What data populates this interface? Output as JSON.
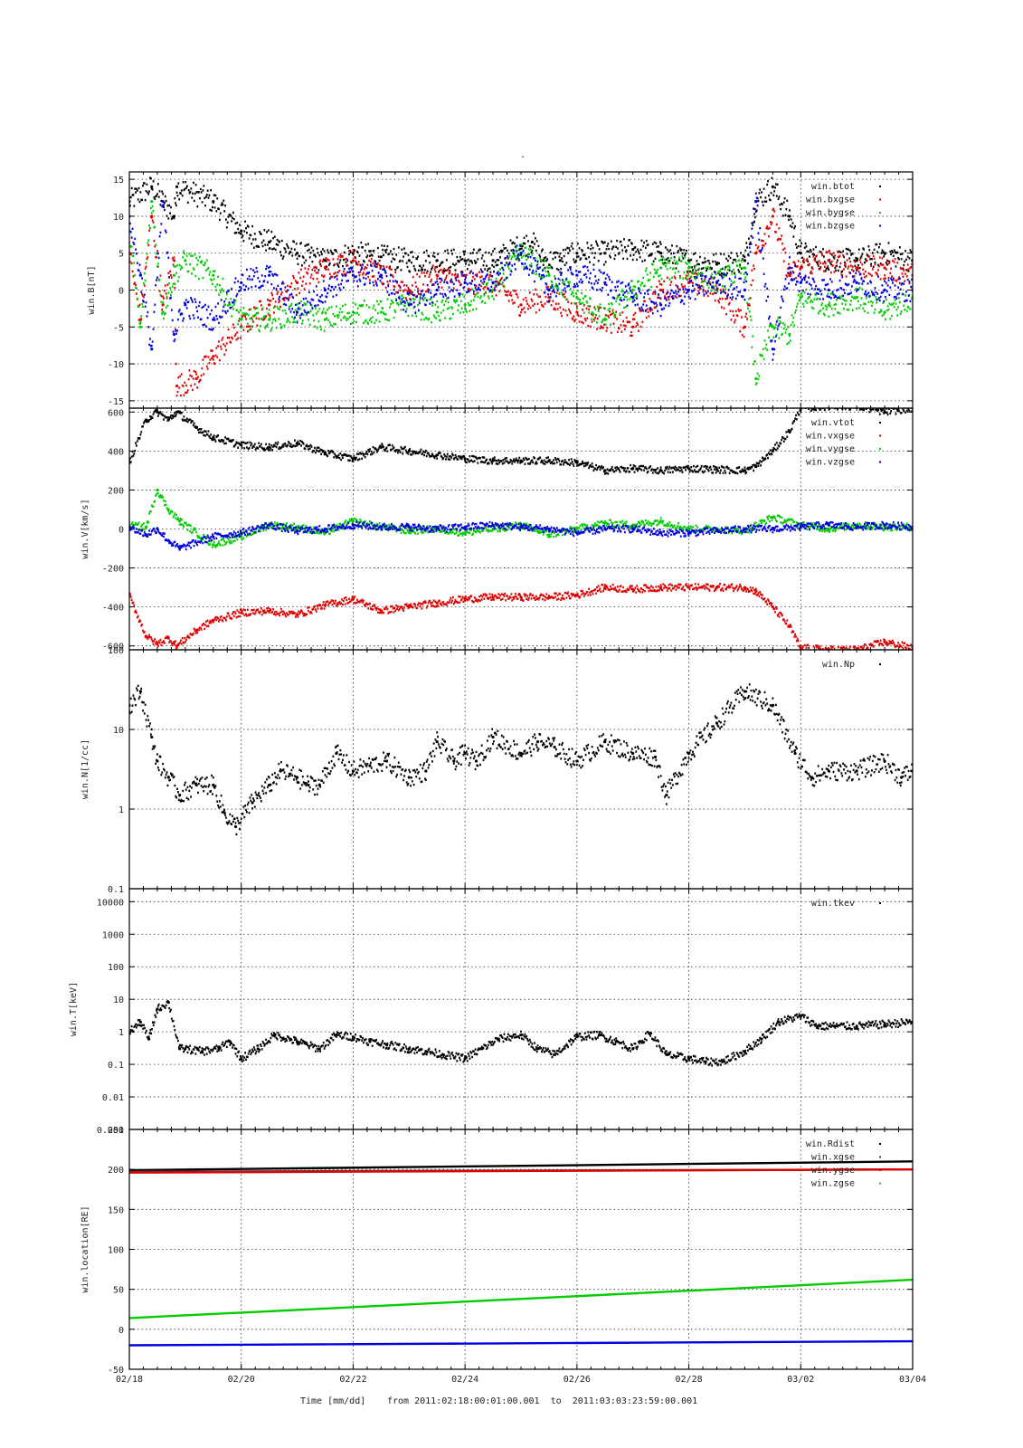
{
  "figure": {
    "top_mark": "-",
    "footer": {
      "xlabel": "Time [mm/dd]",
      "range_text": "from 2011:02:18:00:01:00.001  to  2011:03:03:23:59:00.001"
    }
  },
  "chart_data": [
    {
      "type": "scatter",
      "id": "panel-b",
      "ylabel": "win.B[nT]",
      "x_unit": "days since 2011-02-18",
      "xlim": [
        0,
        14
      ],
      "x_ticks": [
        0,
        2,
        4,
        6,
        8,
        10,
        12,
        14
      ],
      "x_tick_labels": [
        "02/18",
        "02/20",
        "02/22",
        "02/24",
        "02/26",
        "02/28",
        "03/02",
        "03/04"
      ],
      "ylim": [
        -16,
        16
      ],
      "y_ticks": [
        -15,
        -10,
        -5,
        0,
        5,
        10,
        15
      ],
      "y_tick_labels": [
        "-15",
        "-10",
        "-5",
        "0",
        "5",
        "10",
        "15"
      ],
      "log": false,
      "grid": true,
      "legend_position": "top-right",
      "series": [
        {
          "name": "win.btot",
          "color": "#000000",
          "x": [
            0.0,
            0.4,
            0.8,
            0.85,
            1.5,
            2.0,
            2.5,
            3.0,
            3.5,
            4.0,
            4.5,
            5.0,
            5.5,
            6.0,
            6.5,
            7.0,
            7.2,
            7.4,
            7.7,
            8.0,
            8.5,
            9.0,
            9.5,
            10.0,
            10.5,
            11.0,
            11.2,
            11.5,
            11.8,
            12.0,
            12.5,
            13.0,
            13.5,
            14.0
          ],
          "y": [
            12,
            14,
            10,
            14,
            12,
            8,
            6.5,
            5,
            4,
            5,
            4.5,
            4,
            4,
            4,
            4,
            6,
            6.5,
            4,
            4,
            5,
            5,
            5.5,
            5,
            4,
            3.5,
            4,
            12,
            14,
            10,
            5,
            4,
            4,
            5,
            4
          ]
        },
        {
          "name": "win.bxgse",
          "color": "#dd0000",
          "x": [
            0.0,
            0.2,
            0.4,
            0.6,
            0.8,
            0.85,
            1.2,
            1.5,
            2.0,
            2.5,
            3.0,
            3.5,
            4.0,
            4.5,
            5.0,
            5.5,
            6.0,
            6.5,
            7.0,
            7.5,
            8.0,
            8.5,
            9.0,
            9.5,
            10.0,
            10.5,
            11.0,
            11.2,
            11.5,
            11.8,
            12.0,
            12.5,
            13.0,
            13.5,
            14.0
          ],
          "y": [
            5,
            -4,
            10,
            -2,
            4,
            -13,
            -12,
            -9,
            -5,
            -2,
            1,
            3,
            4,
            2,
            0,
            2,
            1,
            1,
            -2,
            -1,
            -3,
            -4,
            -5,
            0,
            1,
            0,
            -5,
            5,
            10,
            2,
            3,
            4,
            3,
            3,
            2
          ]
        },
        {
          "name": "win.bygse",
          "color": "#00cc00",
          "x": [
            0.0,
            0.2,
            0.4,
            0.6,
            0.8,
            1.0,
            1.5,
            2.0,
            2.5,
            3.0,
            3.5,
            4.0,
            4.5,
            5.0,
            5.5,
            6.0,
            6.5,
            7.0,
            7.5,
            8.0,
            8.5,
            9.0,
            9.5,
            10.0,
            10.5,
            11.0,
            11.2,
            11.5,
            11.8,
            12.0,
            12.5,
            13.0,
            13.5,
            14.0
          ],
          "y": [
            8,
            -5,
            12,
            -3,
            2,
            4,
            2,
            -4,
            -4,
            -3,
            -4,
            -3,
            -3,
            -2,
            -3,
            -2,
            0,
            5,
            2,
            -1,
            -4,
            0,
            3,
            3,
            1,
            3,
            -12,
            -5,
            -6,
            -1,
            -2,
            -1,
            -3,
            -1
          ]
        },
        {
          "name": "win.bzgse",
          "color": "#0000dd",
          "x": [
            0.0,
            0.2,
            0.4,
            0.6,
            0.8,
            1.0,
            1.5,
            2.0,
            2.5,
            3.0,
            3.5,
            4.0,
            4.5,
            5.0,
            5.5,
            6.0,
            6.5,
            7.0,
            7.5,
            8.0,
            8.5,
            9.0,
            9.5,
            10.0,
            10.5,
            11.0,
            11.2,
            11.5,
            11.8,
            12.0,
            12.5,
            13.0,
            13.5,
            14.0
          ],
          "y": [
            10,
            2,
            -8,
            12,
            -6,
            -2,
            -4,
            1,
            2,
            -3,
            0,
            2,
            2,
            -2,
            0,
            1,
            1,
            5,
            0,
            2,
            1,
            -1,
            -2,
            0,
            1,
            0,
            12,
            -8,
            3,
            1,
            0,
            1,
            0,
            0
          ]
        }
      ]
    },
    {
      "type": "scatter",
      "id": "panel-v",
      "ylabel": "win.V[km/s]",
      "x_unit": "days since 2011-02-18",
      "xlim": [
        0,
        14
      ],
      "x_ticks": [
        0,
        2,
        4,
        6,
        8,
        10,
        12,
        14
      ],
      "ylim": [
        -620,
        620
      ],
      "y_ticks": [
        -600,
        -400,
        -200,
        0,
        200,
        400,
        600
      ],
      "y_tick_labels": [
        "-600",
        "-400",
        "-200",
        "0",
        "200",
        "400",
        "600"
      ],
      "log": false,
      "grid": true,
      "legend_position": "top-right",
      "series": [
        {
          "name": "win.vtot",
          "color": "#000000",
          "x": [
            0.0,
            0.3,
            0.5,
            0.7,
            0.85,
            1.2,
            1.5,
            2.0,
            2.5,
            3.0,
            3.5,
            4.0,
            4.5,
            5.0,
            5.5,
            6.0,
            6.5,
            7.0,
            7.5,
            8.0,
            8.5,
            9.0,
            9.5,
            10.0,
            10.5,
            11.0,
            11.2,
            11.5,
            11.8,
            12.0,
            12.5,
            13.0,
            13.5,
            14.0
          ],
          "y": [
            340,
            560,
            600,
            560,
            600,
            520,
            470,
            430,
            420,
            440,
            390,
            360,
            420,
            400,
            380,
            360,
            350,
            350,
            350,
            340,
            300,
            310,
            300,
            310,
            305,
            300,
            320,
            400,
            500,
            620,
            630,
            630,
            600,
            620
          ]
        },
        {
          "name": "win.vxgse",
          "color": "#dd0000",
          "x": [
            0.0,
            0.3,
            0.5,
            0.7,
            0.85,
            1.2,
            1.5,
            2.0,
            2.5,
            3.0,
            3.5,
            4.0,
            4.5,
            5.0,
            5.5,
            6.0,
            6.5,
            7.0,
            7.5,
            8.0,
            8.5,
            9.0,
            9.5,
            10.0,
            10.5,
            11.0,
            11.2,
            11.5,
            11.8,
            12.0,
            12.5,
            13.0,
            13.5,
            14.0
          ],
          "y": [
            -340,
            -550,
            -590,
            -560,
            -600,
            -520,
            -470,
            -430,
            -420,
            -440,
            -390,
            -360,
            -420,
            -400,
            -380,
            -360,
            -350,
            -350,
            -350,
            -340,
            -300,
            -310,
            -300,
            -300,
            -300,
            -300,
            -320,
            -400,
            -500,
            -610,
            -620,
            -620,
            -580,
            -610
          ]
        },
        {
          "name": "win.vygse",
          "color": "#00cc00",
          "x": [
            0.0,
            0.3,
            0.5,
            0.7,
            0.9,
            1.5,
            2.0,
            2.5,
            3.0,
            3.5,
            4.0,
            4.5,
            5.0,
            5.5,
            6.0,
            6.5,
            7.0,
            7.5,
            8.0,
            8.5,
            9.0,
            9.5,
            10.0,
            10.5,
            11.0,
            11.5,
            12.0,
            12.5,
            13.0,
            13.5,
            14.0
          ],
          "y": [
            20,
            10,
            200,
            100,
            40,
            -80,
            -40,
            20,
            10,
            -20,
            40,
            10,
            -10,
            0,
            -20,
            0,
            20,
            -30,
            0,
            30,
            20,
            40,
            0,
            0,
            -10,
            60,
            20,
            0,
            20,
            10,
            10
          ]
        },
        {
          "name": "win.vzgse",
          "color": "#0000dd",
          "x": [
            0.0,
            0.3,
            0.5,
            0.7,
            0.9,
            1.5,
            2.0,
            2.5,
            3.0,
            3.5,
            4.0,
            4.5,
            5.0,
            5.5,
            6.0,
            6.5,
            7.0,
            7.5,
            8.0,
            8.5,
            9.0,
            9.5,
            10.0,
            10.5,
            11.0,
            11.5,
            12.0,
            12.5,
            13.0,
            13.5,
            14.0
          ],
          "y": [
            10,
            -30,
            0,
            -60,
            -100,
            -40,
            -20,
            20,
            -10,
            0,
            20,
            10,
            10,
            0,
            10,
            20,
            10,
            0,
            -20,
            0,
            0,
            -20,
            -20,
            -10,
            0,
            0,
            10,
            20,
            10,
            20,
            10
          ]
        }
      ]
    },
    {
      "type": "scatter",
      "id": "panel-n",
      "ylabel": "win.N[1/cc]",
      "x_unit": "days since 2011-02-18",
      "xlim": [
        0,
        14
      ],
      "x_ticks": [
        0,
        2,
        4,
        6,
        8,
        10,
        12,
        14
      ],
      "ylim": [
        0.1,
        100
      ],
      "y_ticks": [
        0.1,
        1,
        10,
        100
      ],
      "y_tick_labels": [
        "0.1",
        "1",
        "10",
        "100"
      ],
      "log": true,
      "grid": true,
      "legend_position": "top-right",
      "series": [
        {
          "name": "win.Np",
          "color": "#000000",
          "x": [
            0.0,
            0.2,
            0.4,
            0.5,
            0.7,
            0.9,
            1.2,
            1.5,
            1.7,
            1.9,
            2.2,
            2.5,
            2.7,
            3.0,
            3.2,
            3.4,
            3.7,
            4.0,
            4.3,
            4.6,
            5.0,
            5.3,
            5.5,
            5.8,
            6.0,
            6.2,
            6.5,
            7.0,
            7.3,
            7.6,
            8.0,
            8.5,
            9.0,
            9.4,
            9.6,
            10.0,
            10.5,
            11.0,
            11.5,
            11.9,
            12.2,
            12.5,
            13.0,
            13.5,
            13.8,
            14.0
          ],
          "y": [
            20,
            30,
            8,
            4,
            2.5,
            1.5,
            2,
            2,
            0.9,
            0.6,
            1.2,
            2,
            3,
            2.5,
            2,
            2,
            5,
            3,
            3.5,
            4,
            2.5,
            3,
            7,
            4,
            5,
            4,
            8,
            5,
            7,
            6,
            4,
            7,
            5,
            4.5,
            1.5,
            5,
            12,
            30,
            20,
            5,
            2.5,
            3,
            3,
            4,
            2.5,
            3
          ]
        }
      ]
    },
    {
      "type": "scatter",
      "id": "panel-t",
      "ylabel": "win.T[keV]",
      "x_unit": "days since 2011-02-18",
      "xlim": [
        0,
        14
      ],
      "x_ticks": [
        0,
        2,
        4,
        6,
        8,
        10,
        12,
        14
      ],
      "ylim": [
        0.001,
        25000
      ],
      "y_ticks": [
        0.001,
        0.01,
        0.1,
        1,
        10,
        100,
        1000,
        10000
      ],
      "y_tick_labels": [
        "0.001",
        "0.01",
        "0.1",
        "1",
        "10",
        "100",
        "1000",
        "10000"
      ],
      "log": true,
      "grid": true,
      "legend_position": "top-right",
      "series": [
        {
          "name": "win.tkev",
          "color": "#000000",
          "x": [
            0.0,
            0.2,
            0.35,
            0.5,
            0.7,
            0.9,
            1.0,
            1.3,
            1.6,
            1.8,
            2.0,
            2.3,
            2.6,
            3.0,
            3.4,
            3.7,
            4.0,
            4.3,
            4.6,
            5.0,
            5.3,
            5.6,
            6.0,
            6.3,
            6.6,
            7.0,
            7.3,
            7.6,
            8.0,
            8.4,
            8.7,
            9.0,
            9.3,
            9.6,
            10.0,
            10.3,
            10.6,
            11.0,
            11.3,
            11.6,
            12.0,
            12.3,
            12.6,
            13.0,
            13.5,
            14.0
          ],
          "y": [
            1.0,
            2.0,
            0.6,
            5.0,
            8.0,
            0.3,
            0.3,
            0.25,
            0.3,
            0.5,
            0.15,
            0.3,
            0.8,
            0.5,
            0.3,
            0.8,
            0.7,
            0.5,
            0.4,
            0.3,
            0.25,
            0.2,
            0.15,
            0.3,
            0.6,
            0.8,
            0.3,
            0.2,
            0.7,
            0.8,
            0.5,
            0.3,
            0.9,
            0.2,
            0.15,
            0.12,
            0.12,
            0.25,
            0.6,
            2.0,
            3.0,
            1.5,
            1.5,
            1.5,
            1.7,
            2.0
          ]
        }
      ]
    },
    {
      "type": "line",
      "id": "panel-loc",
      "ylabel": "win.location[RE]",
      "x_unit": "days since 2011-02-18",
      "xlim": [
        0,
        14
      ],
      "x_ticks": [
        0,
        2,
        4,
        6,
        8,
        10,
        12,
        14
      ],
      "ylim": [
        -50,
        250
      ],
      "y_ticks": [
        -50,
        0,
        50,
        100,
        150,
        200
      ],
      "y_tick_labels": [
        "-50",
        "0",
        "50",
        "100",
        "150",
        "200"
      ],
      "extra_tick_label": "250",
      "log": false,
      "grid": true,
      "legend_position": "top-right",
      "series": [
        {
          "name": "win.Rdist",
          "color": "#000000",
          "x": [
            0,
            14
          ],
          "y": [
            199,
            210
          ]
        },
        {
          "name": "win.xgse",
          "color": "#444444",
          "x": [
            0,
            14
          ],
          "y": [
            197,
            200
          ]
        },
        {
          "name": "win.ygse",
          "color": "#dd0000",
          "x": [
            0,
            14
          ],
          "y": [
            196,
            200
          ]
        },
        {
          "name": "win.zgse",
          "color": "#00cc00",
          "x": [
            0,
            14
          ],
          "y": [
            14,
            62
          ]
        },
        {
          "name": "",
          "color": "#0000dd",
          "x": [
            0,
            14
          ],
          "y": [
            -20,
            -15
          ]
        }
      ]
    }
  ]
}
